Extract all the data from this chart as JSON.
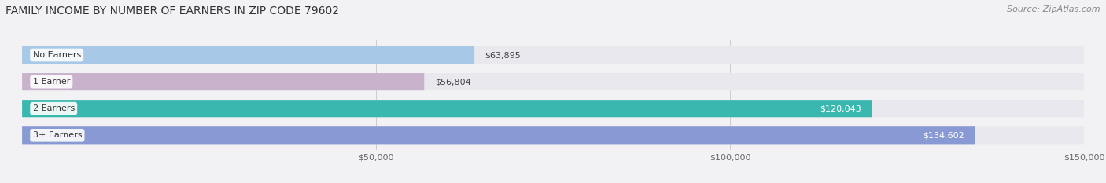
{
  "title": "FAMILY INCOME BY NUMBER OF EARNERS IN ZIP CODE 79602",
  "source": "Source: ZipAtlas.com",
  "categories": [
    "No Earners",
    "1 Earner",
    "2 Earners",
    "3+ Earners"
  ],
  "values": [
    63895,
    56804,
    120043,
    134602
  ],
  "bar_colors": [
    "#a8c8e8",
    "#c9b3cc",
    "#3ab8b0",
    "#8899d4"
  ],
  "bar_bg_color": "#e8e8ee",
  "label_colors": [
    "#444444",
    "#444444",
    "#ffffff",
    "#ffffff"
  ],
  "value_labels": [
    "$63,895",
    "$56,804",
    "$120,043",
    "$134,602"
  ],
  "xlim": [
    0,
    150000
  ],
  "xticks": [
    50000,
    100000,
    150000
  ],
  "xtick_labels": [
    "$50,000",
    "$100,000",
    "$150,000"
  ],
  "fig_bg_color": "#f2f2f5",
  "title_fontsize": 10,
  "source_fontsize": 8,
  "bar_height": 0.65
}
